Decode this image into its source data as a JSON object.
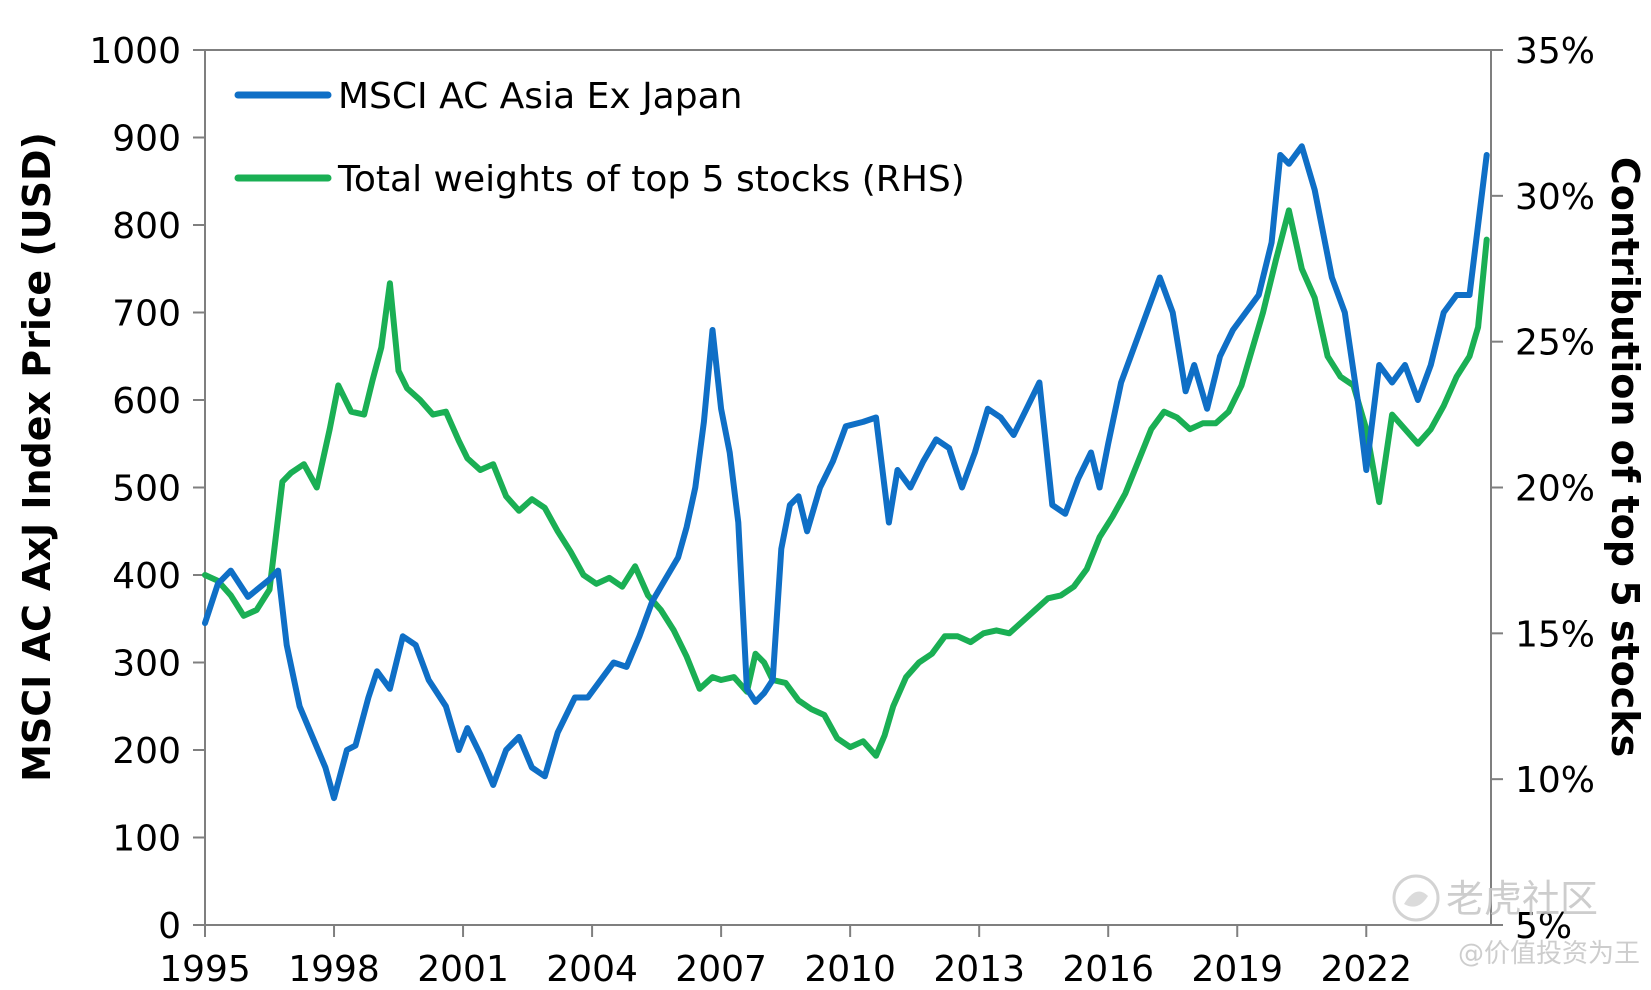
{
  "chart_data": {
    "type": "line",
    "title": "",
    "xlabel": "",
    "ylabel": "MSCI AC AxJ Index Price (USD)",
    "ylabel_right": "Contribution of top 5 stocks",
    "xlim": [
      1995,
      2024.9
    ],
    "ylim": [
      0,
      1000
    ],
    "ylim_right": [
      5,
      35
    ],
    "grid": false,
    "legend_position": "top-left",
    "x_tick_labels": [
      "1995",
      "1998",
      "2001",
      "2004",
      "2007",
      "2010",
      "2013",
      "2016",
      "2019",
      "2022"
    ],
    "y_tick_labels": [
      "0",
      "100",
      "200",
      "300",
      "400",
      "500",
      "600",
      "700",
      "800",
      "900",
      "1000"
    ],
    "y_right_tick_labels": [
      "5%",
      "10%",
      "15%",
      "20%",
      "25%",
      "30%",
      "35%"
    ],
    "series": [
      {
        "name": "MSCI AC Asia Ex Japan",
        "axis": "left",
        "color": "#0f6fc6",
        "x": [
          1995.0,
          1995.3,
          1995.6,
          1996.0,
          1996.5,
          1996.7,
          1996.9,
          1997.2,
          1997.5,
          1997.8,
          1998.0,
          1998.3,
          1998.5,
          1998.8,
          1999.0,
          1999.3,
          1999.6,
          1999.9,
          2000.2,
          2000.6,
          2000.9,
          2001.1,
          2001.4,
          2001.7,
          2002.0,
          2002.3,
          2002.6,
          2002.9,
          2003.2,
          2003.6,
          2003.9,
          2004.2,
          2004.5,
          2004.8,
          2005.1,
          2005.4,
          2005.7,
          2006.0,
          2006.2,
          2006.4,
          2006.6,
          2006.8,
          2007.0,
          2007.2,
          2007.4,
          2007.6,
          2007.8,
          2008.0,
          2008.2,
          2008.4,
          2008.6,
          2008.8,
          2009.0,
          2009.3,
          2009.6,
          2009.9,
          2010.3,
          2010.6,
          2010.9,
          2011.1,
          2011.4,
          2011.7,
          2012.0,
          2012.3,
          2012.6,
          2012.9,
          2013.2,
          2013.5,
          2013.8,
          2014.1,
          2014.4,
          2014.7,
          2015.0,
          2015.3,
          2015.6,
          2015.8,
          2016.0,
          2016.3,
          2016.6,
          2016.9,
          2017.2,
          2017.5,
          2017.8,
          2018.0,
          2018.3,
          2018.6,
          2018.9,
          2019.2,
          2019.5,
          2019.8,
          2020.0,
          2020.2,
          2020.5,
          2020.8,
          2021.0,
          2021.2,
          2021.5,
          2021.8,
          2022.0,
          2022.3,
          2022.6,
          2022.9,
          2023.2,
          2023.5,
          2023.8,
          2024.1,
          2024.4,
          2024.6,
          2024.8
        ],
        "values": [
          345,
          390,
          405,
          375,
          395,
          405,
          320,
          250,
          215,
          180,
          145,
          200,
          205,
          260,
          290,
          270,
          330,
          320,
          280,
          250,
          200,
          225,
          195,
          160,
          200,
          215,
          180,
          170,
          220,
          260,
          260,
          280,
          300,
          295,
          330,
          370,
          395,
          420,
          455,
          500,
          575,
          680,
          590,
          540,
          460,
          270,
          255,
          265,
          280,
          430,
          480,
          490,
          450,
          500,
          530,
          570,
          575,
          580,
          460,
          520,
          500,
          530,
          555,
          545,
          500,
          540,
          590,
          580,
          560,
          590,
          620,
          480,
          470,
          510,
          540,
          500,
          550,
          620,
          660,
          700,
          740,
          700,
          610,
          640,
          590,
          650,
          680,
          700,
          720,
          780,
          880,
          870,
          890,
          840,
          790,
          740,
          700,
          600,
          520,
          640,
          620,
          640,
          600,
          640,
          700,
          720,
          720,
          800,
          880
        ]
      },
      {
        "name": "Total weights of top 5 stocks (RHS)",
        "axis": "right",
        "color": "#1aaf54",
        "x": [
          1995.0,
          1995.3,
          1995.6,
          1995.9,
          1996.2,
          1996.5,
          1996.8,
          1997.0,
          1997.3,
          1997.6,
          1997.9,
          1998.1,
          1998.4,
          1998.7,
          1998.9,
          1999.1,
          1999.3,
          1999.5,
          1999.7,
          2000.0,
          2000.3,
          2000.6,
          2000.9,
          2001.1,
          2001.4,
          2001.7,
          2002.0,
          2002.3,
          2002.6,
          2002.9,
          2003.2,
          2003.5,
          2003.8,
          2004.1,
          2004.4,
          2004.7,
          2005.0,
          2005.3,
          2005.6,
          2005.9,
          2006.2,
          2006.5,
          2006.8,
          2007.0,
          2007.3,
          2007.6,
          2007.8,
          2008.0,
          2008.2,
          2008.5,
          2008.8,
          2009.1,
          2009.4,
          2009.7,
          2010.0,
          2010.3,
          2010.6,
          2010.8,
          2011.0,
          2011.3,
          2011.6,
          2011.9,
          2012.2,
          2012.5,
          2012.8,
          2013.1,
          2013.4,
          2013.7,
          2014.0,
          2014.3,
          2014.6,
          2014.9,
          2015.2,
          2015.5,
          2015.8,
          2016.1,
          2016.4,
          2016.7,
          2017.0,
          2017.3,
          2017.6,
          2017.9,
          2018.2,
          2018.5,
          2018.8,
          2019.1,
          2019.4,
          2019.6,
          2019.9,
          2020.2,
          2020.5,
          2020.8,
          2021.1,
          2021.4,
          2021.7,
          2022.0,
          2022.3,
          2022.6,
          2022.9,
          2023.2,
          2023.5,
          2023.8,
          2024.1,
          2024.4,
          2024.6,
          2024.8
        ],
        "values": [
          17,
          16.8,
          16.3,
          15.6,
          15.8,
          16.5,
          20.2,
          20.5,
          20.8,
          20.0,
          22.0,
          23.5,
          22.6,
          22.5,
          23.7,
          24.8,
          27.0,
          24.0,
          23.4,
          23.0,
          22.5,
          22.6,
          21.6,
          21.0,
          20.6,
          20.8,
          19.7,
          19.2,
          19.6,
          19.3,
          18.5,
          17.8,
          17.0,
          16.7,
          16.9,
          16.6,
          17.3,
          16.3,
          15.8,
          15.1,
          14.2,
          13.1,
          13.5,
          13.4,
          13.5,
          13.0,
          14.3,
          14.0,
          13.4,
          13.3,
          12.7,
          12.4,
          12.2,
          11.4,
          11.1,
          11.3,
          10.8,
          11.5,
          12.5,
          13.5,
          14.0,
          14.3,
          14.9,
          14.9,
          14.7,
          15.0,
          15.1,
          15.0,
          15.4,
          15.8,
          16.2,
          16.3,
          16.6,
          17.2,
          18.3,
          19.0,
          19.8,
          20.9,
          22.0,
          22.6,
          22.4,
          22.0,
          22.2,
          22.2,
          22.6,
          23.5,
          25.0,
          26.0,
          27.8,
          29.5,
          27.5,
          26.5,
          24.5,
          23.8,
          23.5,
          22.0,
          19.5,
          22.5,
          22.0,
          21.5,
          22.0,
          22.8,
          23.8,
          24.5,
          25.5,
          28.5
        ]
      }
    ]
  },
  "watermark": {
    "logo_text": "老虎社区",
    "handle_text": "@价值投资为王"
  }
}
